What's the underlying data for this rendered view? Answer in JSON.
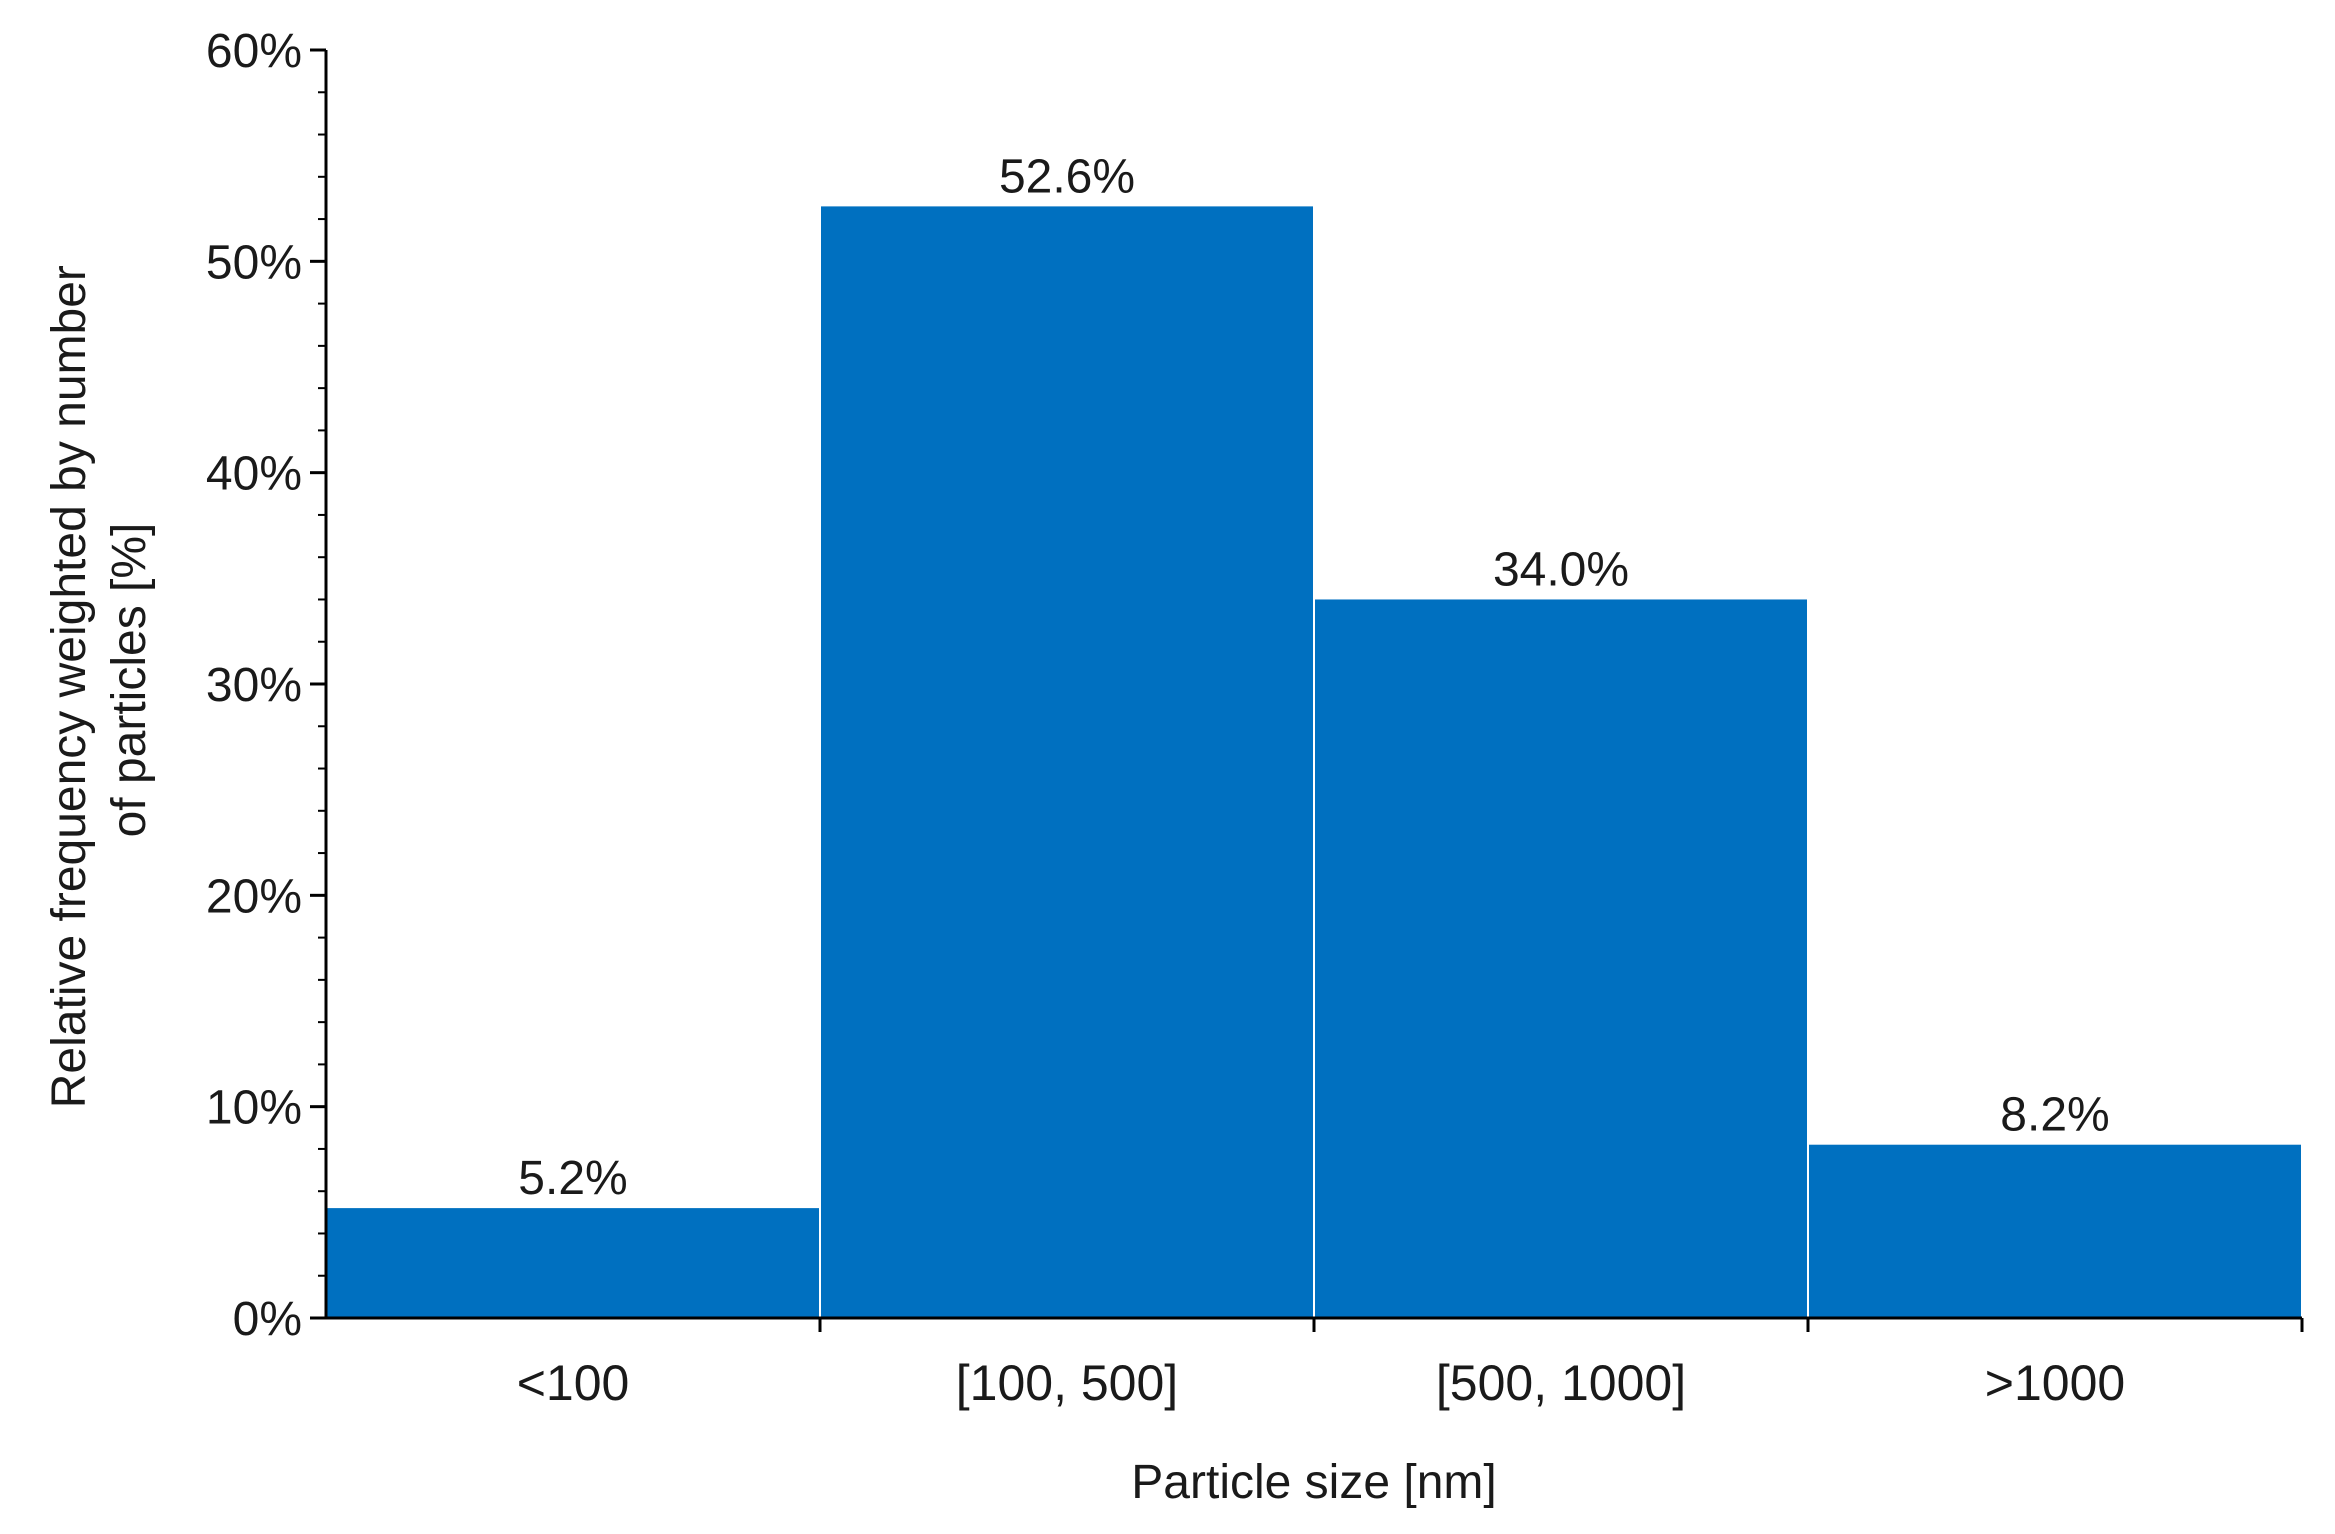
{
  "chart_data": {
    "type": "bar",
    "categories": [
      "<100",
      "[100, 500]",
      "[500, 1000]",
      ">1000"
    ],
    "values": [
      5.2,
      52.6,
      34.0,
      8.2
    ],
    "data_labels": [
      "5.2%",
      "52.6%",
      "34.0%",
      "8.2%"
    ],
    "title": "",
    "xlabel": "Particle size [nm]",
    "ylabel_lines": [
      "Relative frequency weighted by number",
      "of particles [%]"
    ],
    "ylim": [
      0,
      60
    ],
    "yticks": [
      0,
      10,
      20,
      30,
      40,
      50,
      60
    ],
    "ytick_labels": [
      "0%",
      "10%",
      "20%",
      "30%",
      "40%",
      "50%",
      "60%"
    ],
    "bar_color": "#0070C0",
    "grid": false,
    "legend": "none"
  }
}
